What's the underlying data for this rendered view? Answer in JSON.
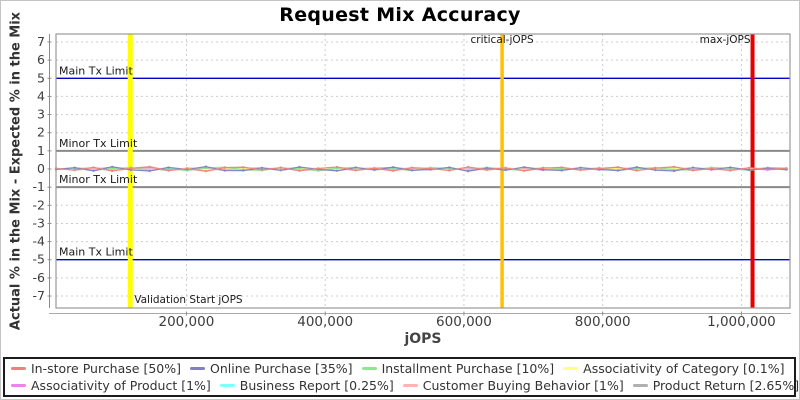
{
  "page": {
    "background": "#ffffff",
    "border_color": "#c4c4c4"
  },
  "chart_data": {
    "type": "line",
    "title": "Request Mix Accuracy",
    "xlabel": "jOPS",
    "ylabel": "Actual % in the Mix - Expected % in the Mix",
    "xlim": [
      12000,
      1070000
    ],
    "ylim": [
      -7.66,
      7.44
    ],
    "grid": true,
    "legend_position": "bottom",
    "xticks": {
      "values": [
        200000,
        400000,
        600000,
        800000,
        1000000
      ],
      "labels": [
        "200,000",
        "400,000",
        "600,000",
        "800,000",
        "1,000,000"
      ]
    },
    "yticks": [
      -7,
      -6,
      -5,
      -4,
      -3,
      -2,
      -1,
      0,
      1,
      2,
      3,
      4,
      5,
      6,
      7
    ],
    "reference_lines": [
      {
        "id": "main-tx-limit-upper",
        "label": "Main Tx Limit",
        "y": 5,
        "color": "#0000cc",
        "width": 1.4
      },
      {
        "id": "minor-tx-limit-upper",
        "label": "Minor Tx Limit",
        "y": 1,
        "color": "#8a8a8a",
        "width": 2
      },
      {
        "id": "minor-tx-limit-lower",
        "label": "Minor Tx Limit",
        "y": -1,
        "color": "#8a8a8a",
        "width": 2
      },
      {
        "id": "main-tx-limit-lower",
        "label": "Main Tx Limit",
        "y": -5,
        "color": "#0000cc",
        "width": 1.4
      }
    ],
    "marker_lines": [
      {
        "id": "validation-start-jops",
        "label": "Validation Start jOPS",
        "x": 119000,
        "color": "#ffff00",
        "width": 5,
        "label_pos": "bottom-right"
      },
      {
        "id": "critical-jops",
        "label": "critical-jOPS",
        "x": 655000,
        "color": "#ffc000",
        "width": 3.5,
        "label_pos": "top-center"
      },
      {
        "id": "max-jops",
        "label": "max-jOPS",
        "x": 1016000,
        "color": "#e60000",
        "width": 4,
        "label_pos": "top-left"
      }
    ],
    "x": [
      12000,
      39000,
      66000,
      93000,
      120000,
      147000,
      174000,
      201000,
      228000,
      255000,
      282000,
      309000,
      336000,
      363000,
      390000,
      417000,
      444000,
      471000,
      498000,
      525000,
      552000,
      579000,
      606000,
      633000,
      660000,
      687000,
      714000,
      741000,
      768000,
      795000,
      822000,
      849000,
      876000,
      903000,
      930000,
      957000,
      984000,
      1011000,
      1038000,
      1065000
    ],
    "series": [
      {
        "id": "in-store-purchase",
        "name": "In-store Purchase [50%]",
        "color": "#f08080",
        "values": [
          0.02,
          -0.06,
          0.09,
          -0.11,
          0.04,
          0.12,
          -0.08,
          0.02,
          -0.12,
          0.07,
          0.1,
          -0.05,
          0.08,
          -0.1,
          0.03,
          0.11,
          -0.07,
          0.04,
          -0.1,
          0.08,
          0.02,
          -0.08,
          0.11,
          -0.04,
          0.06,
          -0.1,
          0.05,
          0.09,
          -0.06,
          0.03,
          0.1,
          -0.09,
          0.05,
          0.12,
          -0.07,
          0.02,
          -0.08,
          0.06,
          -0.03,
          0.04
        ]
      },
      {
        "id": "online-purchase",
        "name": "Online Purchase [35%]",
        "color": "#8080c8",
        "values": [
          -0.03,
          0.07,
          -0.1,
          0.12,
          -0.05,
          -0.11,
          0.09,
          -0.03,
          0.13,
          -0.08,
          -0.09,
          0.06,
          -0.07,
          0.11,
          -0.02,
          -0.1,
          0.08,
          -0.05,
          0.1,
          -0.07,
          -0.03,
          0.09,
          -0.12,
          0.05,
          -0.06,
          0.1,
          -0.04,
          -0.08,
          0.07,
          -0.02,
          -0.09,
          0.1,
          -0.06,
          -0.11,
          0.08,
          -0.03,
          0.09,
          -0.05,
          0.04,
          -0.04
        ]
      },
      {
        "id": "installment-purchase",
        "name": "Installment Purchase [10%]",
        "color": "#90e690",
        "values": [
          0.01,
          0.05,
          -0.07,
          0.03,
          0.08,
          -0.06,
          0.02,
          -0.09,
          0.05,
          0.1,
          -0.04,
          -0.08,
          0.06,
          0.02,
          -0.1,
          0.04,
          0.09,
          -0.05,
          0.01,
          -0.08,
          0.07,
          0.03,
          -0.06,
          0.09,
          -0.02,
          -0.07,
          0.08,
          0.01,
          -0.05,
          0.06,
          -0.08,
          0.02,
          0.07,
          -0.04,
          -0.06,
          0.09,
          0.03,
          -0.07,
          0.05,
          -0.02
        ]
      },
      {
        "id": "associativity-of-category",
        "name": "Associativity of Category [0.1%]",
        "color": "#ffff80",
        "values": [
          0.0,
          0.02,
          -0.03,
          0.01,
          0.03,
          -0.02,
          0.0,
          0.02,
          -0.04,
          0.01,
          0.03,
          -0.01,
          -0.03,
          0.02,
          0.04,
          -0.02,
          0.0,
          0.03,
          -0.01,
          -0.04,
          0.02,
          0.01,
          -0.03,
          0.0,
          0.04,
          -0.02,
          0.01,
          0.03,
          -0.01,
          0.0,
          0.02,
          -0.03,
          0.01,
          0.04,
          -0.02,
          0.0,
          0.03,
          -0.01,
          0.02,
          0.0
        ]
      },
      {
        "id": "associativity-of-product",
        "name": "Associativity of Product [1%]",
        "color": "#ee82ee",
        "values": [
          -0.02,
          0.04,
          0.01,
          -0.05,
          0.03,
          0.06,
          -0.04,
          0.0,
          0.05,
          -0.03,
          0.02,
          0.06,
          -0.05,
          0.01,
          0.04,
          -0.06,
          0.02,
          0.05,
          -0.03,
          0.0,
          0.06,
          -0.04,
          0.01,
          0.05,
          -0.02,
          0.03,
          -0.06,
          0.0,
          0.04,
          -0.05,
          0.01,
          0.06,
          -0.03,
          0.02,
          0.05,
          -0.04,
          0.0,
          0.03,
          -0.05,
          0.02
        ]
      },
      {
        "id": "business-report",
        "name": "Business Report [0.25%]",
        "color": "#80ffff",
        "values": [
          0.03,
          -0.04,
          0.02,
          0.05,
          -0.03,
          0.01,
          0.04,
          -0.05,
          0.02,
          0.0,
          -0.04,
          0.03,
          0.05,
          -0.02,
          0.01,
          0.04,
          -0.05,
          0.0,
          0.03,
          0.05,
          -0.03,
          0.01,
          0.04,
          -0.02,
          0.05,
          0.0,
          -0.04,
          0.02,
          0.03,
          -0.05,
          0.01,
          0.04,
          0.0,
          -0.03,
          0.05,
          0.02,
          -0.04,
          0.01,
          0.03,
          0.0
        ]
      },
      {
        "id": "customer-buying-behavior",
        "name": "Customer Buying Behavior [1%]",
        "color": "#ffb3b3",
        "values": [
          -0.01,
          0.03,
          0.06,
          -0.04,
          0.02,
          -0.06,
          0.04,
          0.01,
          -0.05,
          0.03,
          0.06,
          -0.02,
          0.0,
          0.05,
          -0.06,
          0.02,
          0.04,
          -0.03,
          0.06,
          0.0,
          -0.05,
          0.03,
          0.02,
          -0.06,
          0.04,
          0.01,
          0.05,
          -0.04,
          0.0,
          0.06,
          -0.03,
          0.02,
          0.05,
          -0.06,
          0.01,
          0.04,
          -0.02,
          0.06,
          0.0,
          0.03
        ]
      },
      {
        "id": "product-return",
        "name": "Product Return [2.65%]",
        "color": "#b0b0b0",
        "values": [
          0.04,
          -0.06,
          0.03,
          0.07,
          -0.05,
          0.02,
          -0.08,
          0.05,
          0.03,
          -0.07,
          0.06,
          0.01,
          -0.05,
          0.08,
          -0.03,
          0.02,
          -0.07,
          0.05,
          0.08,
          -0.04,
          0.01,
          0.06,
          -0.08,
          0.03,
          0.05,
          -0.06,
          0.02,
          0.07,
          -0.04,
          0.01,
          0.08,
          -0.05,
          0.03,
          0.06,
          -0.07,
          0.02,
          0.05,
          -0.03,
          0.07,
          0.04
        ]
      }
    ]
  },
  "legend": {
    "items_per_row": 4
  }
}
